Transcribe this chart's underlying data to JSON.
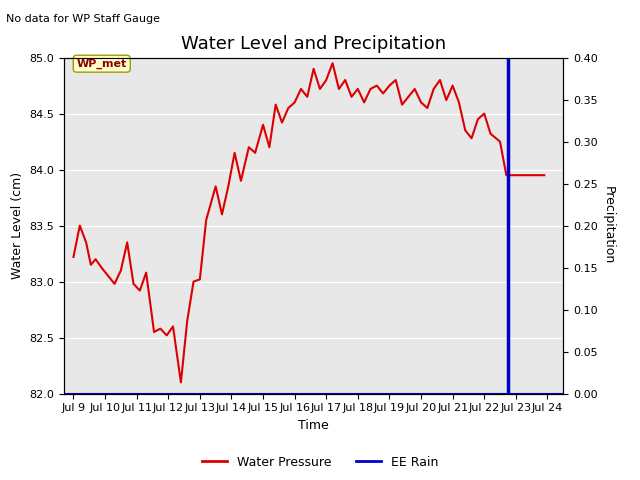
{
  "title": "Water Level and Precipitation",
  "subtitle": "No data for WP Staff Gauge",
  "ylabel_left": "Water Level (cm)",
  "ylabel_right": "Precipitation",
  "xlabel": "Time",
  "annotation": "WP_met",
  "ylim_left": [
    82.0,
    85.0
  ],
  "ylim_right": [
    0.0,
    0.4
  ],
  "bg_color": "#e8e8e8",
  "fig_color": "#ffffff",
  "water_pressure_color": "#dd0000",
  "ee_rain_color": "#0000cc",
  "x_ticks": [
    9,
    10,
    11,
    12,
    13,
    14,
    15,
    16,
    17,
    18,
    19,
    20,
    21,
    22,
    23,
    24
  ],
  "x_tick_labels": [
    "Jul 9",
    "Jul 10",
    "Jul 11",
    "Jul 12",
    "Jul 13",
    "Jul 14",
    "Jul 15",
    "Jul 16",
    "Jul 17",
    "Jul 18",
    "Jul 19",
    "Jul 20",
    "Jul 21",
    "Jul 22",
    "Jul 23",
    "Jul 24"
  ],
  "water_x": [
    9.0,
    9.2,
    9.4,
    9.55,
    9.7,
    9.9,
    10.1,
    10.3,
    10.5,
    10.7,
    10.9,
    11.1,
    11.3,
    11.55,
    11.75,
    11.95,
    12.15,
    12.4,
    12.6,
    12.8,
    13.0,
    13.2,
    13.5,
    13.7,
    13.9,
    14.1,
    14.3,
    14.55,
    14.75,
    15.0,
    15.2,
    15.4,
    15.6,
    15.8,
    16.0,
    16.2,
    16.4,
    16.6,
    16.8,
    17.0,
    17.2,
    17.4,
    17.6,
    17.8,
    18.0,
    18.2,
    18.4,
    18.6,
    18.8,
    19.0,
    19.2,
    19.4,
    19.6,
    19.8,
    20.0,
    20.2,
    20.4,
    20.6,
    20.8,
    21.0,
    21.2,
    21.4,
    21.6,
    21.8,
    22.0,
    22.2,
    22.5,
    22.7,
    23.9
  ],
  "water_y": [
    83.22,
    83.5,
    83.35,
    83.15,
    83.2,
    83.12,
    83.05,
    82.98,
    83.1,
    83.35,
    82.98,
    82.92,
    83.08,
    82.55,
    82.58,
    82.52,
    82.6,
    82.1,
    82.65,
    83.0,
    83.02,
    83.55,
    83.85,
    83.6,
    83.85,
    84.15,
    83.9,
    84.2,
    84.15,
    84.4,
    84.2,
    84.58,
    84.42,
    84.55,
    84.6,
    84.72,
    84.65,
    84.9,
    84.72,
    84.8,
    84.95,
    84.72,
    84.8,
    84.65,
    84.72,
    84.6,
    84.72,
    84.75,
    84.68,
    84.75,
    84.8,
    84.58,
    84.65,
    84.72,
    84.6,
    84.55,
    84.72,
    84.8,
    84.62,
    84.75,
    84.6,
    84.35,
    84.28,
    84.45,
    84.5,
    84.32,
    84.25,
    83.95,
    83.95
  ],
  "vline_x": 22.75,
  "hline_y": 82.0,
  "title_fontsize": 13,
  "subtitle_fontsize": 8,
  "label_fontsize": 9,
  "tick_fontsize": 8,
  "annotation_fontsize": 8,
  "legend_fontsize": 9,
  "xlim": [
    8.7,
    24.5
  ]
}
